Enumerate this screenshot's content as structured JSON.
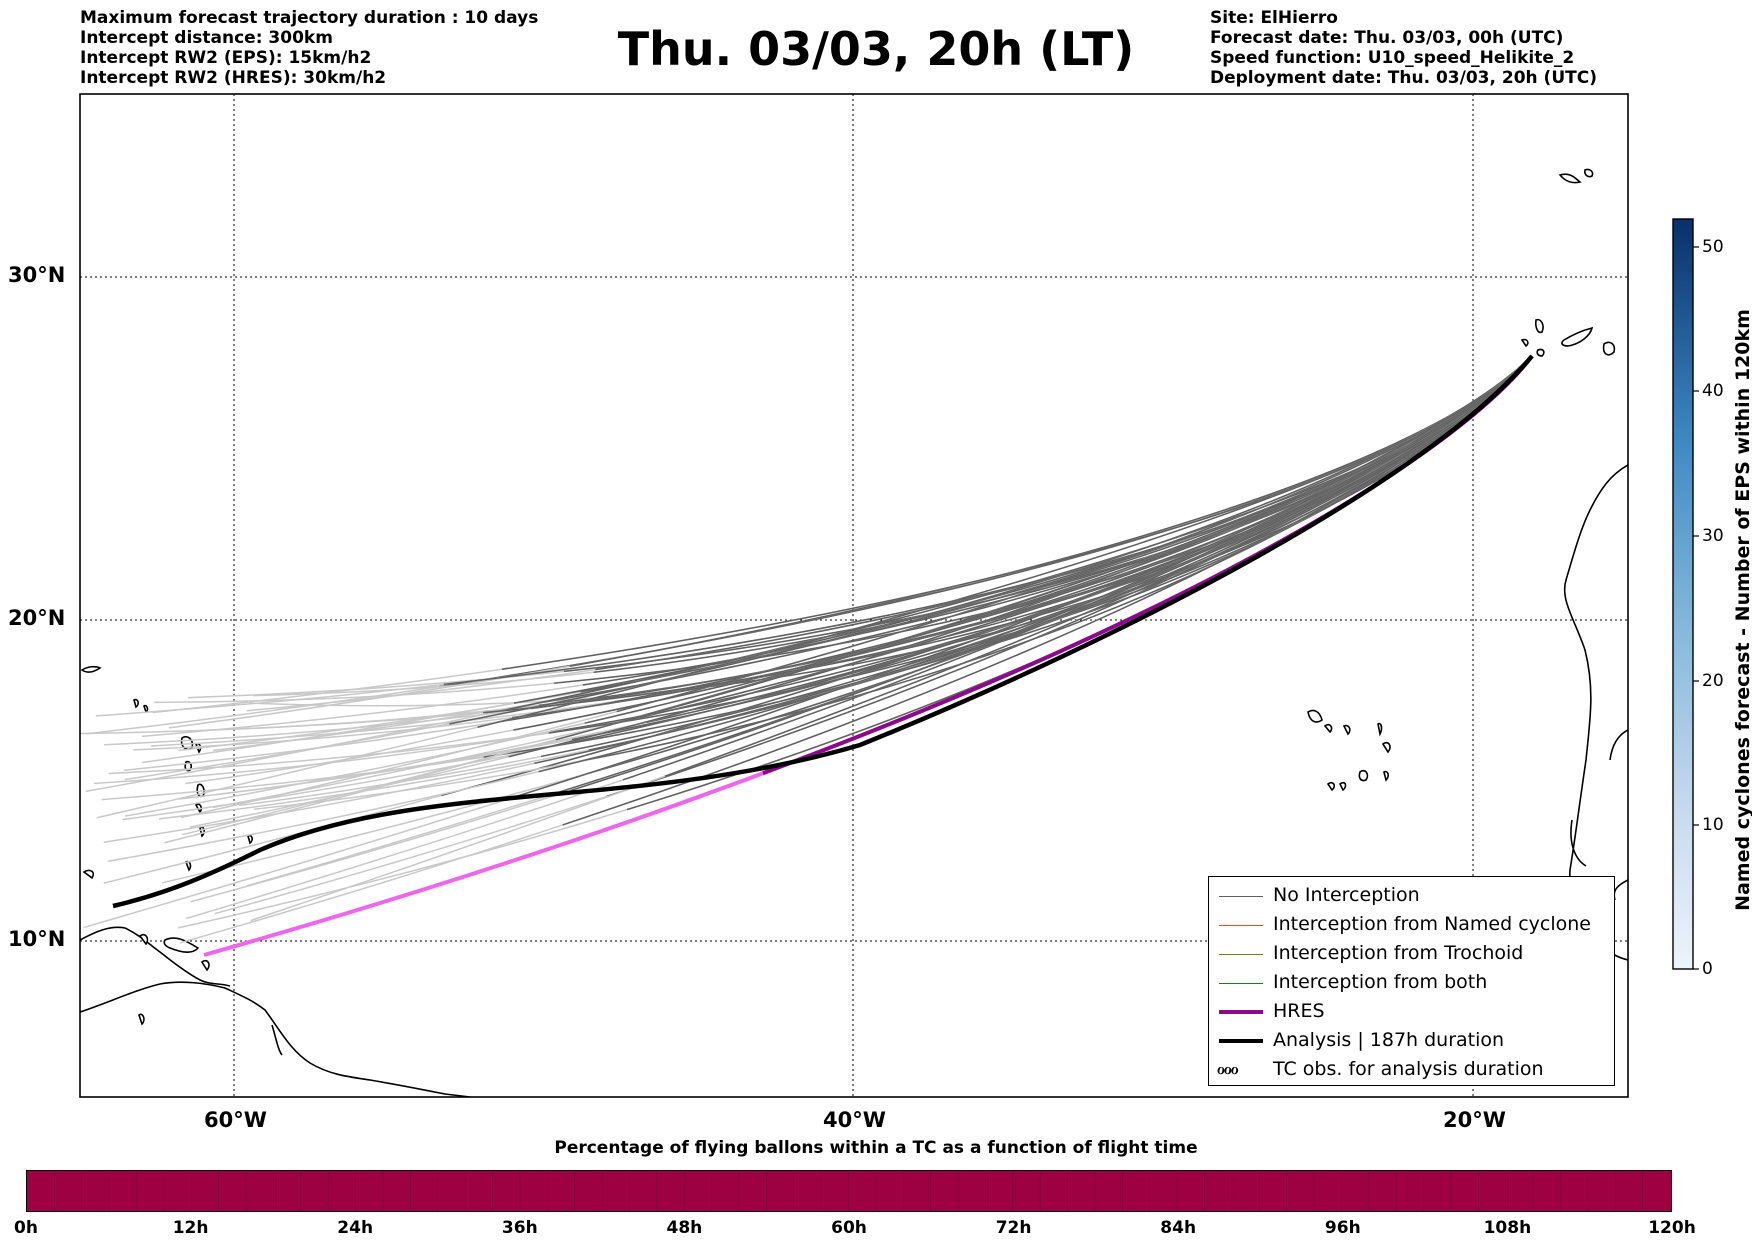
{
  "header": {
    "left_lines": [
      "Maximum forecast trajectory duration : 10 days",
      "Intercept distance: 300km",
      "Intercept RW2 (EPS):  15km/h2",
      "Intercept RW2 (HRES): 30km/h2"
    ],
    "title": "Thu. 03/03, 20h (LT)",
    "right_lines": [
      "Site: ElHierro",
      "Forecast date: Thu. 03/03, 00h (UTC)",
      "Speed function: U10_speed_Helikite_2",
      "Deployment date: Thu. 03/03, 20h (UTC)"
    ]
  },
  "map": {
    "lat_labels": [
      "30°N",
      "20°N",
      "10°N"
    ],
    "lon_labels": [
      "60°W",
      "40°W",
      "20°W"
    ],
    "colors": {
      "no_interception": "#606060",
      "no_interception_late": "#c8c8c8",
      "named_cyclone": "#e8501e",
      "trochoid": "#7a7a1e",
      "both": "#1e7a1e",
      "hres": "#8b0a8b",
      "hres_late": "#ee66ee",
      "analysis": "#000000"
    }
  },
  "legend": {
    "items": [
      {
        "label": "No Interception",
        "style": "no-interception"
      },
      {
        "label": "Interception from Named cyclone",
        "style": "named-cyclone"
      },
      {
        "label": "Interception from Trochoid",
        "style": "trochoid"
      },
      {
        "label": "Interception from both",
        "style": "both"
      },
      {
        "label": "HRES",
        "style": "hres"
      },
      {
        "label": "Analysis | 187h duration",
        "style": "analysis"
      },
      {
        "label": "TC obs. for analysis duration",
        "style": "tc-obs"
      }
    ],
    "tc_glyph": "ℴℴℴ"
  },
  "colorbar": {
    "title": "Named cyclones forecast - Number of EPS within 120km",
    "ticks": [
      "0",
      "10",
      "20",
      "30",
      "40",
      "50"
    ],
    "color_low": "#e6eef8",
    "color_high": "#08306b"
  },
  "timebar": {
    "title": "Percentage of flying ballons within a TC as a function of flight time",
    "ticks": [
      "0h",
      "12h",
      "24h",
      "36h",
      "48h",
      "60h",
      "72h",
      "84h",
      "96h",
      "108h",
      "120h"
    ],
    "fill_color": "#9e0142"
  }
}
